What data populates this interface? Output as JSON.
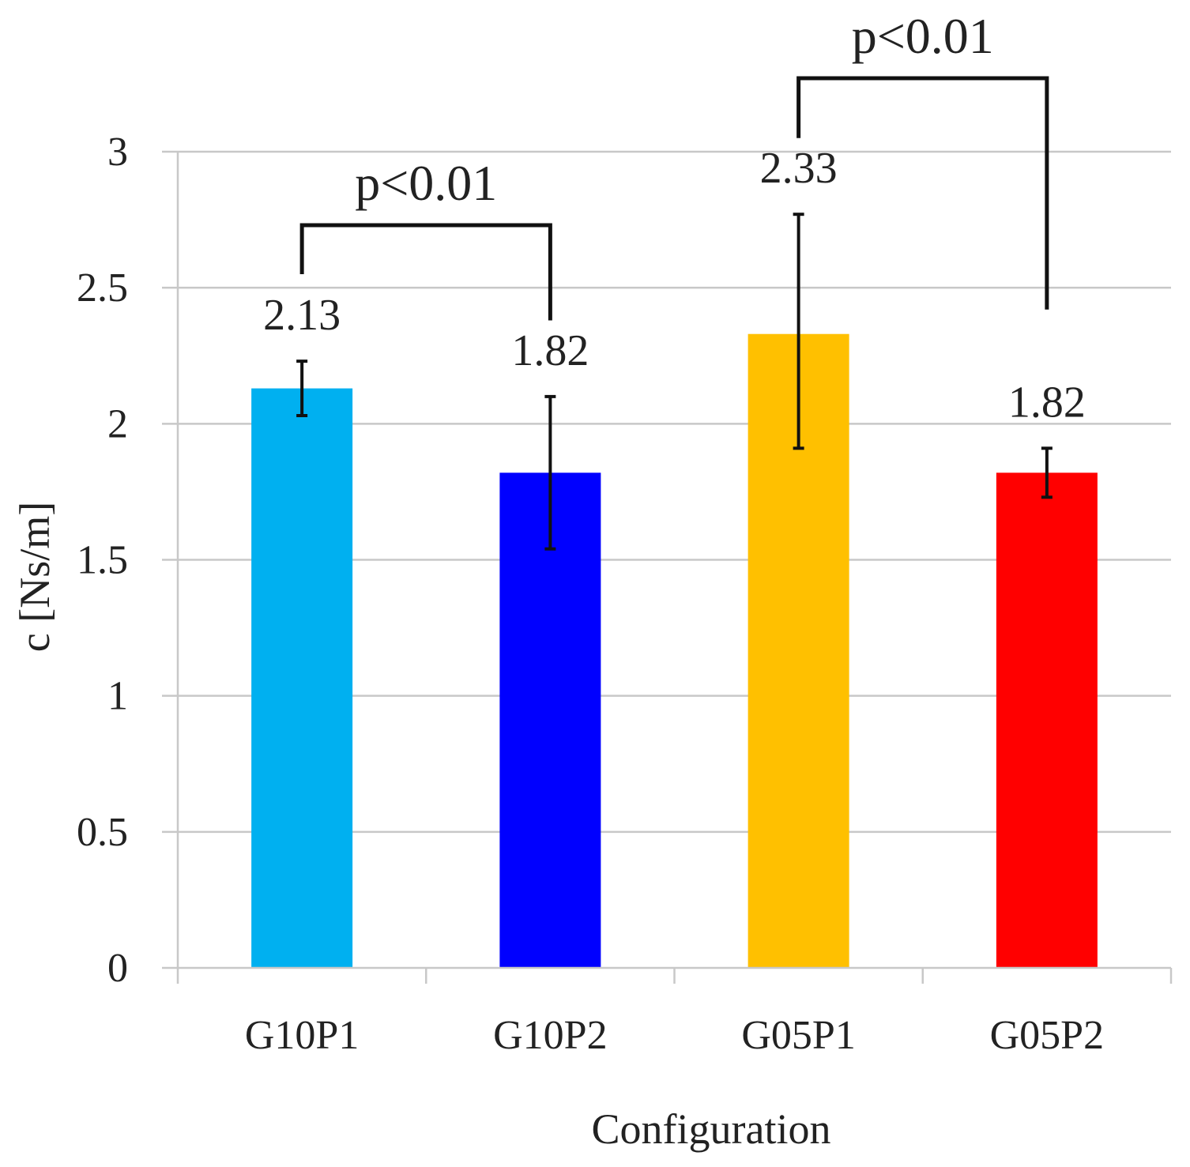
{
  "chart_data": {
    "type": "bar",
    "title": "",
    "xlabel": "Configuration",
    "ylabel": "c [Ns/m]",
    "ylim": [
      0,
      3
    ],
    "yticks": [
      0,
      0.5,
      1,
      1.5,
      2,
      2.5,
      3
    ],
    "ytick_labels": [
      "0",
      "0.5",
      "1",
      "1.5",
      "2",
      "2.5",
      "3"
    ],
    "grid": true,
    "categories": [
      "G10P1",
      "G10P2",
      "G05P1",
      "G05P2"
    ],
    "values": [
      2.13,
      1.82,
      2.33,
      1.82
    ],
    "value_labels": [
      "2.13",
      "1.82",
      "2.33",
      "1.82"
    ],
    "error_low": [
      2.03,
      1.54,
      1.91,
      1.73
    ],
    "error_high": [
      2.23,
      2.1,
      2.77,
      1.91
    ],
    "colors": [
      "#00b0f0",
      "#0000ff",
      "#ffc000",
      "#ff0000"
    ],
    "annotations": [
      {
        "text": "p<0.01",
        "from": "G10P1",
        "to": "G10P2",
        "level": 2.73,
        "left_end": 2.55,
        "right_end": 2.38
      },
      {
        "text": "p<0.01",
        "from": "G05P1",
        "to": "G05P2",
        "level": 3.27,
        "left_end": 3.05,
        "right_end": 2.42
      }
    ]
  }
}
